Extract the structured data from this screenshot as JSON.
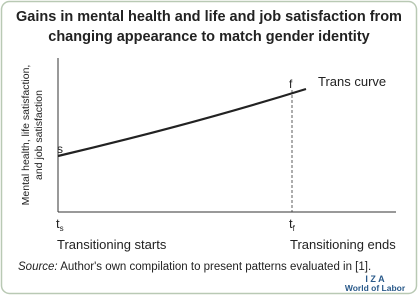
{
  "title_lines": [
    "Gains in mental health and life and job satisfaction from",
    "changing appearance to match gender identity"
  ],
  "y_axis_label_lines": [
    "Mental health, life satisfaction,",
    "and job satisfaction"
  ],
  "curve_label": "Trans curve",
  "point_start": "s",
  "point_end": "f",
  "tick_start": {
    "main": "t",
    "sub": "s"
  },
  "tick_end": {
    "main": "t",
    "sub": "f"
  },
  "x_label_start": "Transitioning starts",
  "x_label_end": "Transitioning ends",
  "source": {
    "lead": "Source:",
    "text": " Author's own compilation to present patterns evaluated in [1]."
  },
  "logo": {
    "top": "I Z A",
    "bottom": "World of Labor"
  }
}
